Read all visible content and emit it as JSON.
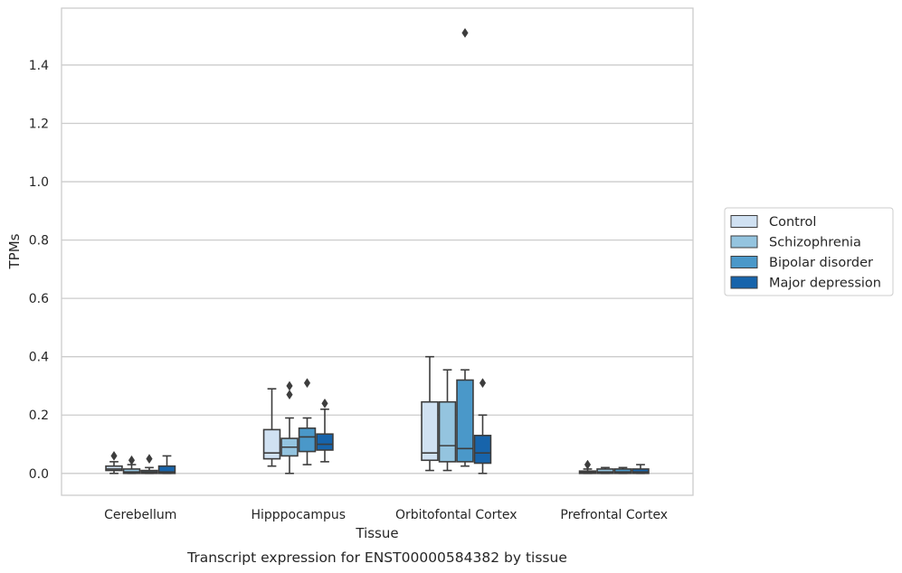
{
  "chart_data": {
    "type": "box",
    "xlabel": "Tissue",
    "ylabel": "TPMs",
    "caption": "Transcript expression for ENST00000584382 by tissue",
    "categories": [
      "Cerebellum",
      "Hipppocampus",
      "Orbitofontal Cortex",
      "Prefrontal Cortex"
    ],
    "ylim": [
      -0.075,
      1.595
    ],
    "yticks": [
      0.0,
      0.2,
      0.4,
      0.6,
      0.8,
      1.0,
      1.2,
      1.4
    ],
    "ytick_labels": [
      "0.0",
      "0.2",
      "0.4",
      "0.6",
      "0.8",
      "1.0",
      "1.2",
      "1.4"
    ],
    "grid": true,
    "legend_position": "right",
    "series": [
      {
        "name": "Control",
        "color": "#d0e1f2",
        "boxes": [
          {
            "whislo": 0.0,
            "q1": 0.01,
            "med": 0.015,
            "q3": 0.025,
            "whishi": 0.04,
            "fliers": [
              0.06
            ]
          },
          {
            "whislo": 0.025,
            "q1": 0.05,
            "med": 0.07,
            "q3": 0.15,
            "whishi": 0.29,
            "fliers": []
          },
          {
            "whislo": 0.01,
            "q1": 0.045,
            "med": 0.07,
            "q3": 0.245,
            "whishi": 0.4,
            "fliers": []
          },
          {
            "whislo": 0.0,
            "q1": 0.0,
            "med": 0.003,
            "q3": 0.008,
            "whishi": 0.015,
            "fliers": [
              0.03
            ]
          }
        ]
      },
      {
        "name": "Schizophrenia",
        "color": "#94c4df",
        "boxes": [
          {
            "whislo": 0.0,
            "q1": 0.0,
            "med": 0.005,
            "q3": 0.015,
            "whishi": 0.03,
            "fliers": [
              0.045
            ]
          },
          {
            "whislo": 0.0,
            "q1": 0.06,
            "med": 0.09,
            "q3": 0.12,
            "whishi": 0.19,
            "fliers": [
              0.27,
              0.3
            ]
          },
          {
            "whislo": 0.01,
            "q1": 0.04,
            "med": 0.095,
            "q3": 0.245,
            "whishi": 0.355,
            "fliers": []
          },
          {
            "whislo": 0.0,
            "q1": 0.0,
            "med": 0.005,
            "q3": 0.015,
            "whishi": 0.02,
            "fliers": []
          }
        ]
      },
      {
        "name": "Bipolar disorder",
        "color": "#4a98c9",
        "boxes": [
          {
            "whislo": 0.0,
            "q1": 0.0,
            "med": 0.005,
            "q3": 0.01,
            "whishi": 0.02,
            "fliers": [
              0.05
            ]
          },
          {
            "whislo": 0.03,
            "q1": 0.075,
            "med": 0.125,
            "q3": 0.155,
            "whishi": 0.19,
            "fliers": [
              0.31
            ]
          },
          {
            "whislo": 0.025,
            "q1": 0.04,
            "med": 0.085,
            "q3": 0.32,
            "whishi": 0.355,
            "fliers": [
              1.51
            ]
          },
          {
            "whislo": 0.0,
            "q1": 0.0,
            "med": 0.005,
            "q3": 0.015,
            "whishi": 0.02,
            "fliers": []
          }
        ]
      },
      {
        "name": "Major depression",
        "color": "#1764ab",
        "boxes": [
          {
            "whislo": 0.0,
            "q1": 0.0,
            "med": 0.005,
            "q3": 0.025,
            "whishi": 0.06,
            "fliers": []
          },
          {
            "whislo": 0.04,
            "q1": 0.08,
            "med": 0.1,
            "q3": 0.135,
            "whishi": 0.22,
            "fliers": [
              0.24
            ]
          },
          {
            "whislo": 0.0,
            "q1": 0.035,
            "med": 0.07,
            "q3": 0.13,
            "whishi": 0.2,
            "fliers": [
              0.31
            ]
          },
          {
            "whislo": 0.0,
            "q1": 0.0,
            "med": 0.005,
            "q3": 0.015,
            "whishi": 0.03,
            "fliers": []
          }
        ]
      }
    ]
  }
}
